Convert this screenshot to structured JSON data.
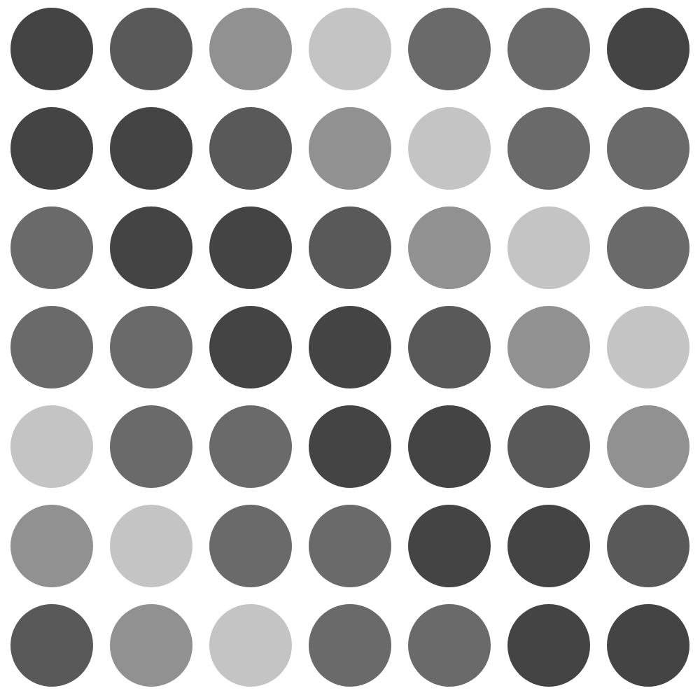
{
  "palette": {
    "A": "#444444",
    "B": "#595959",
    "C": "#6a6a6a",
    "D": "#919191",
    "E": "#c4c4c4"
  },
  "grid": {
    "rows": [
      [
        "A",
        "B",
        "D",
        "E",
        "C",
        "C",
        "A"
      ],
      [
        "A",
        "A",
        "B",
        "D",
        "E",
        "C",
        "C"
      ],
      [
        "C",
        "A",
        "A",
        "B",
        "D",
        "E",
        "C"
      ],
      [
        "C",
        "C",
        "A",
        "A",
        "B",
        "D",
        "E"
      ],
      [
        "E",
        "C",
        "C",
        "A",
        "A",
        "B",
        "D"
      ],
      [
        "D",
        "E",
        "C",
        "C",
        "A",
        "A",
        "B"
      ],
      [
        "B",
        "D",
        "E",
        "C",
        "C",
        "A",
        "A"
      ]
    ]
  }
}
